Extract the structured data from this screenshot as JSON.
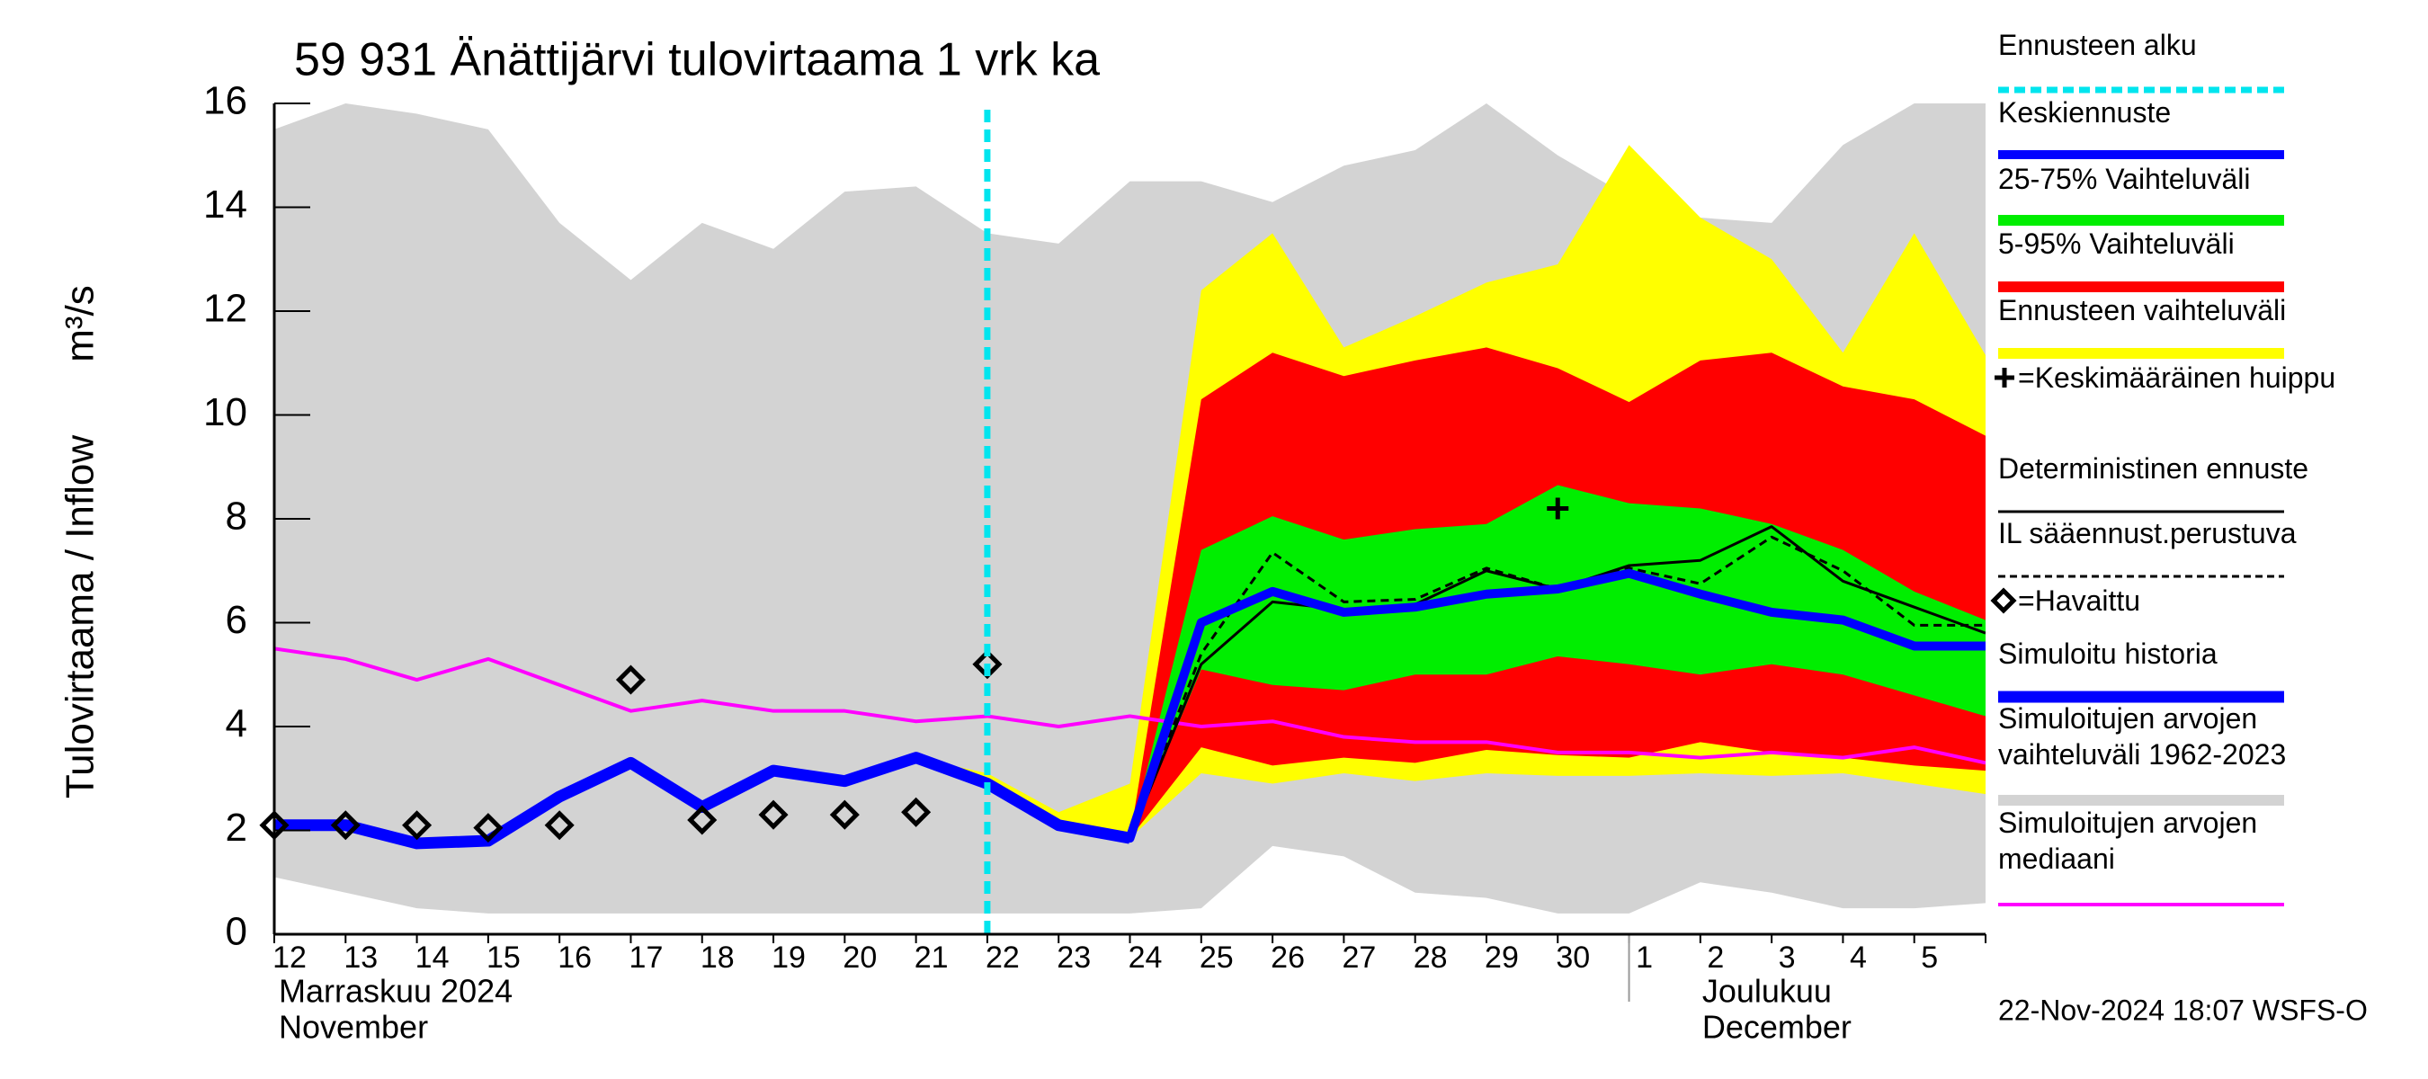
{
  "chart_data": {
    "type": "hydrograph",
    "title": "59 931 Änättijärvi tulovirtaama 1 vrk ka",
    "y_label": "Tulovirtaama / Inflow",
    "y_unit": "m³/s",
    "footer": "22-Nov-2024 18:07 WSFS-O",
    "categories": [
      "12",
      "13",
      "14",
      "15",
      "16",
      "17",
      "18",
      "19",
      "20",
      "21",
      "22",
      "23",
      "24",
      "25",
      "26",
      "27",
      "28",
      "29",
      "30",
      "1",
      "2",
      "3",
      "4",
      "5",
      null
    ],
    "months": [
      {
        "name": "Marraskuu 2024",
        "name_en": "November",
        "start": "12"
      },
      {
        "name": "Joulukuu",
        "name_en": "December",
        "start": "1"
      }
    ],
    "ylim": [
      0,
      16
    ],
    "yticks": [
      0,
      2,
      4,
      6,
      8,
      10,
      12,
      14,
      16
    ],
    "grid": false,
    "legend": "right",
    "series": [
      {
        "name": "Ennusteen alku",
        "kind": "vline",
        "color": "#00e5ee",
        "dashed": true,
        "at": "22"
      },
      {
        "name": "Keskiennuste",
        "kind": "line",
        "color": "#0000ff",
        "dashed": false,
        "values": [
          null,
          null,
          null,
          null,
          null,
          null,
          null,
          null,
          null,
          3.4,
          2.9,
          2.1,
          1.85,
          6.0,
          6.6,
          6.2,
          6.3,
          6.55,
          6.65,
          6.95,
          6.55,
          6.2,
          6.05,
          5.55,
          5.55
        ]
      },
      {
        "name": "25-75% Vaihteluväli",
        "kind": "band",
        "color": "#00ee00",
        "upper": [
          null,
          null,
          null,
          null,
          null,
          null,
          null,
          null,
          null,
          null,
          null,
          null,
          1.85,
          7.4,
          8.05,
          7.6,
          7.8,
          7.9,
          8.65,
          8.3,
          8.2,
          7.9,
          7.4,
          6.6,
          6.05
        ],
        "lower": [
          null,
          null,
          null,
          null,
          null,
          null,
          null,
          null,
          null,
          null,
          null,
          null,
          1.85,
          5.1,
          4.8,
          4.7,
          5.0,
          5.0,
          5.35,
          5.2,
          5.0,
          5.2,
          5.0,
          4.6,
          4.2
        ]
      },
      {
        "name": "5-95% Vaihteluväli",
        "kind": "band",
        "color": "#ff0000",
        "upper": [
          null,
          null,
          null,
          null,
          null,
          null,
          null,
          null,
          null,
          3.4,
          3.0,
          2.2,
          1.85,
          10.3,
          11.2,
          10.75,
          11.05,
          11.3,
          10.9,
          10.25,
          11.05,
          11.2,
          10.55,
          10.3,
          9.6
        ],
        "lower": [
          null,
          null,
          null,
          null,
          null,
          null,
          null,
          null,
          null,
          3.4,
          2.9,
          2.1,
          1.85,
          3.6,
          3.25,
          3.4,
          3.3,
          3.55,
          3.45,
          3.4,
          3.7,
          3.5,
          3.4,
          3.25,
          3.15
        ]
      },
      {
        "name": "Ennusteen vaihteluväli",
        "kind": "band",
        "color": "#ffff00",
        "upper": [
          null,
          null,
          null,
          null,
          null,
          null,
          null,
          null,
          null,
          3.4,
          3.1,
          2.35,
          2.9,
          12.4,
          13.5,
          11.3,
          11.9,
          12.55,
          12.9,
          15.2,
          13.8,
          13.0,
          11.2,
          13.5,
          11.15
        ],
        "lower": [
          null,
          null,
          null,
          null,
          null,
          null,
          null,
          null,
          null,
          3.4,
          2.85,
          2.0,
          1.85,
          3.1,
          2.9,
          3.1,
          2.95,
          3.1,
          3.05,
          3.05,
          3.1,
          3.05,
          3.1,
          2.9,
          2.7
        ]
      },
      {
        "name": "=Keskimääräinen huippu",
        "kind": "marker",
        "marker": "plus",
        "color": "#000000",
        "values": [
          null,
          null,
          null,
          null,
          null,
          null,
          null,
          null,
          null,
          null,
          null,
          null,
          null,
          null,
          null,
          null,
          null,
          null,
          8.2,
          null,
          null,
          null,
          null,
          null,
          null
        ]
      },
      {
        "name": "Deterministinen ennuste",
        "kind": "line",
        "color": "#000000",
        "dashed": false,
        "values": [
          null,
          null,
          null,
          null,
          null,
          null,
          null,
          null,
          null,
          null,
          null,
          null,
          1.85,
          5.2,
          6.4,
          6.25,
          6.35,
          7.0,
          6.65,
          7.1,
          7.2,
          7.85,
          6.8,
          6.3,
          5.8
        ]
      },
      {
        "name": "IL sääennust.perustuva",
        "kind": "line",
        "color": "#000000",
        "dashed": true,
        "values": [
          null,
          null,
          null,
          null,
          null,
          null,
          null,
          null,
          null,
          null,
          null,
          null,
          1.85,
          5.4,
          7.35,
          6.4,
          6.45,
          7.05,
          6.65,
          7.05,
          6.75,
          7.65,
          7.0,
          5.95,
          5.95
        ]
      },
      {
        "name": "=Havaittu",
        "kind": "marker",
        "marker": "diamond",
        "color": "#000000",
        "values": [
          2.1,
          2.1,
          2.1,
          2.05,
          2.1,
          4.9,
          2.2,
          2.3,
          2.3,
          2.35,
          5.2,
          null,
          null,
          null,
          null,
          null,
          null,
          null,
          null,
          null,
          null,
          null,
          null,
          null,
          null
        ]
      },
      {
        "name": "Simuloitu historia",
        "kind": "line",
        "color": "#0000ff",
        "dashed": false,
        "values": [
          2.1,
          2.1,
          1.75,
          1.8,
          2.65,
          3.3,
          2.45,
          3.15,
          2.95,
          3.4,
          2.9,
          2.1,
          1.85,
          null,
          null,
          null,
          null,
          null,
          null,
          null,
          null,
          null,
          null,
          null,
          null
        ]
      },
      {
        "name": "Simuloitujen arvojen vaihteluväli 1962-2023",
        "kind": "band",
        "color": "#d3d3d3",
        "upper": [
          15.5,
          16,
          15.8,
          15.5,
          13.7,
          12.6,
          13.7,
          13.2,
          14.3,
          14.4,
          13.5,
          13.3,
          14.5,
          14.5,
          14.1,
          14.8,
          15.1,
          16,
          15.0,
          14.2,
          13.8,
          13.7,
          15.2,
          16,
          16
        ],
        "lower": [
          1.1,
          0.8,
          0.5,
          0.4,
          0.4,
          0.4,
          0.4,
          0.4,
          0.4,
          0.4,
          0.4,
          0.4,
          0.4,
          0.5,
          1.7,
          1.5,
          0.8,
          0.7,
          0.4,
          0.4,
          1.0,
          0.8,
          0.5,
          0.5,
          0.6
        ]
      },
      {
        "name": "Simuloitujen arvojen mediaani",
        "kind": "line",
        "color": "#ff00ff",
        "dashed": false,
        "values": [
          5.5,
          5.3,
          4.9,
          5.3,
          4.8,
          4.3,
          4.5,
          4.3,
          4.3,
          4.1,
          4.2,
          4.0,
          4.2,
          4.0,
          4.1,
          3.8,
          3.7,
          3.7,
          3.5,
          3.5,
          3.4,
          3.5,
          3.4,
          3.6,
          3.3
        ]
      }
    ]
  }
}
